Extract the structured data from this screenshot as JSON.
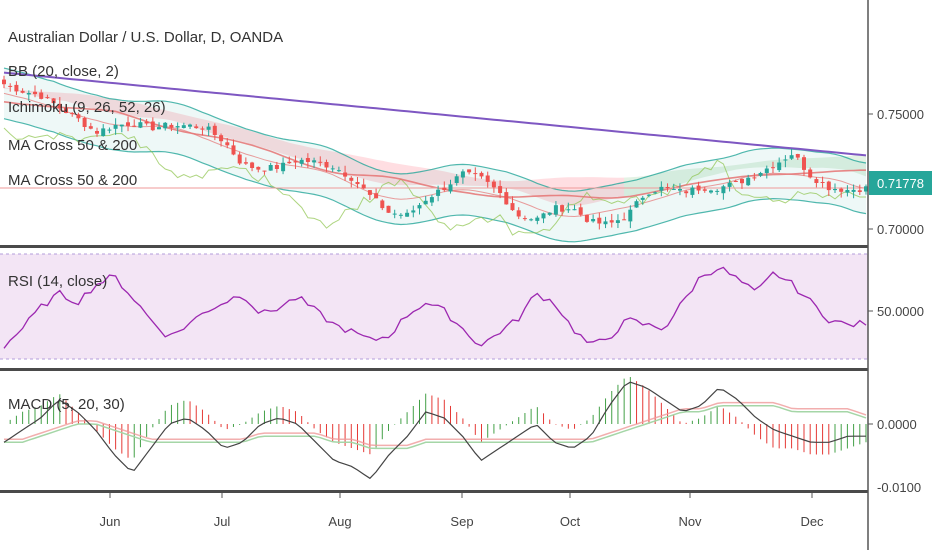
{
  "header": {
    "symbol_title": "Australian Dollar / U.S. Dollar, D, OANDA",
    "indicators": [
      "BB (20, close, 2)",
      "Ichimoku (9, 26, 52, 26)",
      "MA Cross 50 & 200",
      "MA Cross 50 & 200"
    ]
  },
  "rsi_label": "RSI (14, close)",
  "macd_label": "MACD (5, 20, 30)",
  "colors": {
    "up": "#26a69a",
    "down": "#ef5350",
    "bb": "#26a69a",
    "long_ma": "#7e57c2",
    "rsi_line": "#9c27b0",
    "rsi_band": "#f3e5f5",
    "macd_line": "#444444",
    "signal_line": "#ef9a9a",
    "last_price_bg": "#26a69a",
    "cloud_red": "#ffcdd2",
    "cloud_green": "#c8e6c9"
  },
  "chart_data": [
    {
      "type": "candlestick",
      "title": "Australian Dollar / U.S. Dollar, D, OANDA",
      "x_labels": [
        "Jun",
        "Jul",
        "Aug",
        "Sep",
        "Oct",
        "Nov",
        "Dec"
      ],
      "y_ticks": [
        "0.75000",
        "0.70000"
      ],
      "last_price": "0.71778",
      "ylim": [
        0.695,
        0.775
      ],
      "close_path": [
        0.763,
        0.76,
        0.758,
        0.753,
        0.748,
        0.742,
        0.745,
        0.746,
        0.744,
        0.745,
        0.745,
        0.744,
        0.738,
        0.728,
        0.726,
        0.727,
        0.73,
        0.729,
        0.727,
        0.722,
        0.714,
        0.707,
        0.706,
        0.713,
        0.718,
        0.724,
        0.722,
        0.716,
        0.706,
        0.704,
        0.709,
        0.709,
        0.703,
        0.702,
        0.706,
        0.716,
        0.718,
        0.716,
        0.718,
        0.718,
        0.72,
        0.724,
        0.728,
        0.733,
        0.723,
        0.718,
        0.717,
        0.7178
      ]
    },
    {
      "type": "line",
      "title": "RSI (14, close)",
      "y_ticks": [
        "50.0000"
      ],
      "ylim": [
        20,
        80
      ],
      "values": [
        30,
        40,
        52,
        60,
        55,
        65,
        70,
        58,
        45,
        35,
        42,
        50,
        55,
        60,
        48,
        52,
        58,
        50,
        42,
        38,
        33,
        36,
        48,
        55,
        50,
        40,
        30,
        38,
        45,
        60,
        55,
        40,
        30,
        35,
        45,
        42,
        40,
        55,
        70,
        75,
        68,
        60,
        72,
        65,
        55,
        45,
        42,
        43
      ]
    },
    {
      "type": "line",
      "title": "MACD (5, 20, 30)",
      "y_ticks": [
        "0.0000",
        "-0.0100"
      ],
      "ylim": [
        -0.011,
        0.008
      ],
      "series": [
        {
          "values": [
            -0.003,
            -0.001,
            0.001,
            0.004,
            0.002,
            -0.001,
            -0.005,
            -0.008,
            -0.004,
            0.0,
            0.001,
            -0.001,
            -0.004,
            -0.003,
            0.0,
            0.001,
            0.0,
            -0.003,
            -0.006,
            -0.007,
            -0.009,
            -0.005,
            -0.002,
            0.002,
            0.001,
            -0.002,
            -0.006,
            -0.004,
            -0.002,
            0.0,
            -0.003,
            -0.004,
            -0.002,
            0.003,
            0.007,
            0.006,
            0.004,
            0.002,
            0.003,
            0.006,
            0.004,
            0.001,
            -0.001,
            -0.002,
            -0.003,
            -0.003,
            -0.002,
            -0.002
          ]
        },
        {
          "values": [
            -0.003,
            -0.003,
            -0.002,
            -0.001,
            0.0,
            0.0,
            -0.001,
            -0.002,
            -0.003,
            -0.003,
            -0.003,
            -0.003,
            -0.003,
            -0.003,
            -0.002,
            -0.002,
            -0.002,
            -0.002,
            -0.003,
            -0.003,
            -0.004,
            -0.004,
            -0.004,
            -0.003,
            -0.003,
            -0.003,
            -0.003,
            -0.003,
            -0.003,
            -0.003,
            -0.003,
            -0.003,
            -0.003,
            -0.002,
            -0.001,
            0.0,
            0.001,
            0.002,
            0.002,
            0.003,
            0.003,
            0.003,
            0.003,
            0.002,
            0.002,
            0.002,
            0.002,
            0.001
          ]
        }
      ]
    }
  ]
}
